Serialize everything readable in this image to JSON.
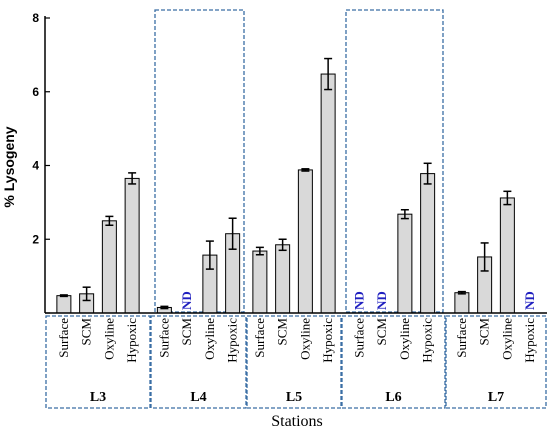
{
  "chart_data": {
    "type": "bar",
    "title": "",
    "xlabel": "Stations",
    "ylabel": "% Lysogeny",
    "ylim": [
      0,
      8
    ],
    "yticks": [
      0,
      2,
      4,
      6,
      8
    ],
    "yticklabels": [
      "",
      "2",
      "4",
      "6",
      "8"
    ],
    "categories": [
      "Surface",
      "SCM",
      "Oxyline",
      "Hypoxic"
    ],
    "nd_label": "ND",
    "grid": false,
    "bar_color": "#d9d9d9",
    "nd_color": "#1f1fbf",
    "box_color": "#3a6ea5",
    "groups": [
      {
        "station": "L3",
        "values": [
          0.47,
          0.52,
          2.5,
          3.65
        ],
        "errors": [
          0.02,
          0.18,
          0.12,
          0.15
        ],
        "nd": [
          false,
          false,
          false,
          false
        ],
        "highlight": false
      },
      {
        "station": "L4",
        "values": [
          0.15,
          null,
          1.57,
          2.15
        ],
        "errors": [
          0.03,
          null,
          0.38,
          0.42
        ],
        "nd": [
          false,
          true,
          false,
          false
        ],
        "highlight": true
      },
      {
        "station": "L5",
        "values": [
          1.68,
          1.85,
          3.88,
          6.48
        ],
        "errors": [
          0.1,
          0.15,
          0.03,
          0.42
        ],
        "nd": [
          false,
          false,
          false,
          false
        ],
        "highlight": false
      },
      {
        "station": "L6",
        "values": [
          null,
          null,
          2.68,
          3.78
        ],
        "errors": [
          null,
          null,
          0.12,
          0.28
        ],
        "nd": [
          true,
          true,
          false,
          false
        ],
        "highlight": true
      },
      {
        "station": "L7",
        "values": [
          0.55,
          1.52,
          3.12,
          null
        ],
        "errors": [
          0.03,
          0.38,
          0.18,
          null
        ],
        "nd": [
          false,
          false,
          false,
          true
        ],
        "highlight": false
      }
    ]
  }
}
